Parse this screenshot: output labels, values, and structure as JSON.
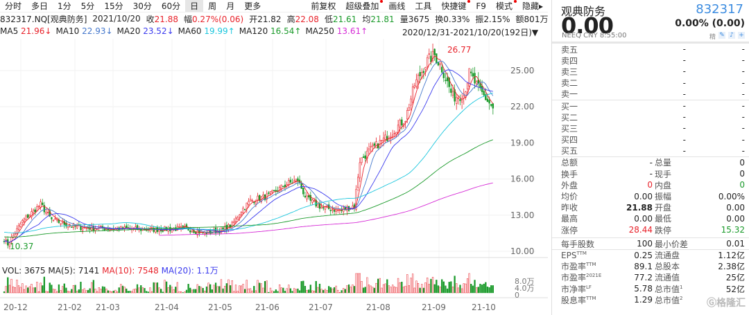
{
  "toolbar": {
    "left": [
      "分时",
      "多日",
      "1分",
      "5分",
      "15分",
      "30分",
      "60分",
      "日",
      "周",
      "月",
      "更多"
    ],
    "selected": "日",
    "right": [
      {
        "label": "前复权",
        "dot": false
      },
      {
        "label": "超级叠加",
        "dot": true
      },
      {
        "label": "画线",
        "dot": false
      },
      {
        "label": "工具",
        "dot": false
      },
      {
        "label": "快捷键",
        "dot": true
      },
      {
        "label": "F9",
        "dot": false
      },
      {
        "label": "模式",
        "dot": true
      },
      {
        "label": "隐藏▸",
        "dot": false
      }
    ]
  },
  "info": {
    "symbol": "832317.NQ[观典防务]",
    "date": "2021/10/20",
    "close_l": "收",
    "close": "21.88",
    "chg_l": "幅",
    "chg": "0.27%(0.06)",
    "open_l": "开",
    "open": "21.82",
    "high_l": "高",
    "high": "22.08",
    "low_l": "低",
    "low": "21.61",
    "avg_l": "均",
    "avg": "21.81",
    "vol_l": "量",
    "vol": "3675",
    "turn_l": "换",
    "turn": "0.33%",
    "amp_l": "振",
    "amp": "2.15%",
    "amt_l": "额",
    "amt": "801万"
  },
  "ma": [
    {
      "label": "MA5",
      "value": "21.96↓",
      "color": "#e8222a"
    },
    {
      "label": "MA10",
      "value": "22.93↓",
      "color": "#4477cc"
    },
    {
      "label": "MA20",
      "value": "23.52↓",
      "color": "#3a3aee"
    },
    {
      "label": "MA60",
      "value": "19.99↑",
      "color": "#1bc6dd"
    },
    {
      "label": "MA120",
      "value": "16.54↑",
      "color": "#1a9a2a"
    },
    {
      "label": "MA250",
      "value": "13.61↑",
      "color": "#d62bd6"
    }
  ],
  "range": "2020/12/31-2021/10/20(192日)▼",
  "chart_data": {
    "type": "candlestick",
    "y_ticks": [
      "25.00",
      "22.00",
      "19.00",
      "16.00",
      "13.00",
      "10.00"
    ],
    "ylim": [
      9.5,
      27.5
    ],
    "max_label": "26.77",
    "min_label": "10.37",
    "days": 192,
    "keypoints": [
      [
        0,
        11.0
      ],
      [
        2,
        10.6
      ],
      [
        10,
        12.5
      ],
      [
        20,
        13.9
      ],
      [
        26,
        12.6
      ],
      [
        40,
        12.0
      ],
      [
        55,
        11.9
      ],
      [
        80,
        11.8
      ],
      [
        100,
        11.9
      ],
      [
        110,
        11.5
      ],
      [
        120,
        11.8
      ],
      [
        125,
        12.2
      ],
      [
        130,
        13.4
      ],
      [
        135,
        14.2
      ],
      [
        145,
        14.6
      ],
      [
        155,
        15.6
      ],
      [
        161,
        15.9
      ],
      [
        166,
        14.3
      ],
      [
        175,
        13.6
      ],
      [
        185,
        13.4
      ],
      [
        192,
        13.8
      ],
      [
        195,
        17.5
      ],
      [
        200,
        18.3
      ],
      [
        210,
        19.5
      ],
      [
        220,
        21.0
      ],
      [
        225,
        23.8
      ],
      [
        232,
        25.8
      ],
      [
        236,
        26.3
      ],
      [
        240,
        25.2
      ],
      [
        246,
        22.8
      ],
      [
        252,
        23.0
      ],
      [
        255,
        24.8
      ],
      [
        260,
        23.5
      ],
      [
        268,
        21.9
      ]
    ],
    "x_ticks": [
      "20-12",
      "21-02",
      "21-03",
      "21-04",
      "21-05",
      "21-06",
      "21-07",
      "21-08",
      "21-09",
      "21-10"
    ],
    "volume": {
      "header": "VOL: 3675",
      "ma5": "MA(5): 7141",
      "ma10": "MA(10): 7548",
      "ma20": "MA(20): 1.1万",
      "y_ticks": [
        "8.0万",
        "4.0万",
        "0"
      ]
    }
  },
  "quote": {
    "name": "观典防务",
    "code": "832317",
    "price": "0.00",
    "change": "0.00% (0.00)",
    "sub": "NEEQ  CNY  8:55:00",
    "icons_label": "精",
    "asks": [
      [
        "卖五",
        "-",
        "-"
      ],
      [
        "卖四",
        "-",
        "-"
      ],
      [
        "卖三",
        "-",
        "-"
      ],
      [
        "卖二",
        "-",
        "-"
      ],
      [
        "卖一",
        "-",
        "-"
      ]
    ],
    "bids": [
      [
        "买一",
        "-",
        "-"
      ],
      [
        "买二",
        "-",
        "-"
      ],
      [
        "买三",
        "-",
        "-"
      ],
      [
        "买四",
        "-",
        "-"
      ],
      [
        "买五",
        "-",
        "-"
      ]
    ],
    "stats": [
      [
        "总额",
        "-",
        "总量",
        "0"
      ],
      [
        "换手",
        "-",
        "现手",
        "0"
      ],
      [
        "外盘",
        "0",
        "内盘",
        "0"
      ],
      [
        "均价",
        "0.00",
        "振幅",
        "0.00%"
      ],
      [
        "昨收",
        "21.88",
        "开盘",
        "0.00"
      ],
      [
        "最高",
        "0.00",
        "最低",
        "0.00"
      ],
      [
        "涨停",
        "28.44",
        "跌停",
        "15.32"
      ]
    ],
    "fund": [
      [
        "每手股数",
        "",
        "100",
        "最小价差",
        "",
        "0.01"
      ],
      [
        "EPS",
        "TTM",
        "0.25",
        "流通盘",
        "",
        "1.12亿"
      ],
      [
        "市盈率",
        "TTM",
        "89.1",
        "总股本",
        "",
        "2.38亿"
      ],
      [
        "市盈率",
        "2021E",
        "77.2",
        "流通值",
        "",
        "25亿"
      ],
      [
        "市净率",
        "LF",
        "5.78",
        "总市值",
        "1",
        "52亿"
      ],
      [
        "股息率",
        "TTM",
        "1.29",
        "总市值",
        "2",
        ""
      ]
    ],
    "watermark": "格隆汇"
  }
}
